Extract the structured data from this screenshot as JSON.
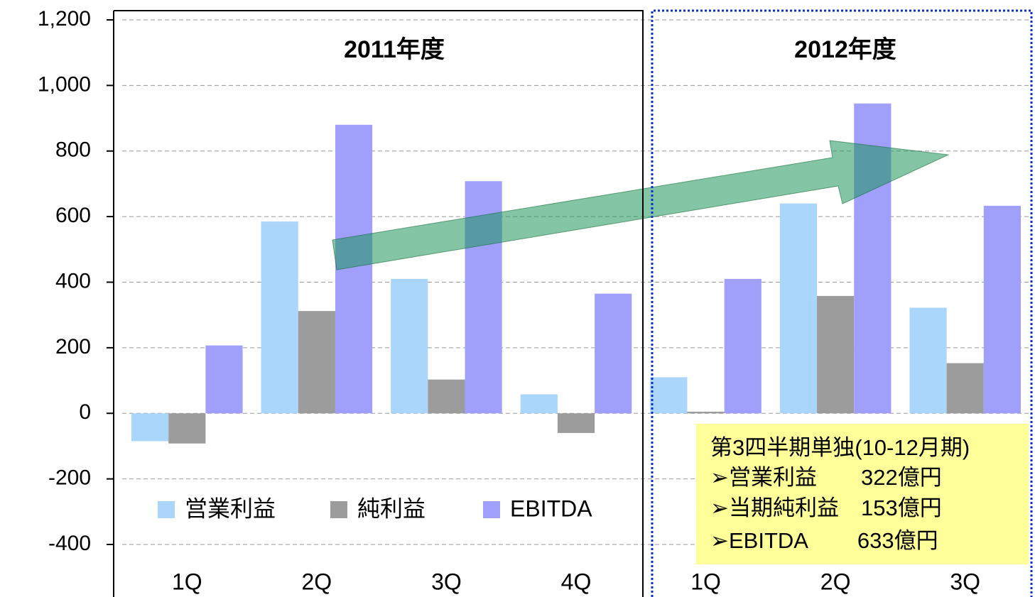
{
  "chart_data": {
    "type": "bar",
    "categories": [
      "1Q",
      "2Q",
      "3Q",
      "4Q",
      "1Q",
      "2Q",
      "3Q"
    ],
    "period_labels": [
      "2011年度",
      "2012年度"
    ],
    "series": [
      {
        "name": "営業利益",
        "color": "#a9d6fa",
        "values": [
          -85,
          585,
          410,
          58,
          110,
          640,
          322
        ]
      },
      {
        "name": "純利益",
        "color": "#9c9c9c",
        "values": [
          -92,
          312,
          103,
          -60,
          5,
          358,
          153
        ]
      },
      {
        "name": "EBITDA",
        "color": "#a0a0fc",
        "values": [
          207,
          880,
          708,
          365,
          410,
          945,
          633
        ]
      }
    ],
    "ylim": [
      -400,
      1200
    ],
    "yticks": [
      -400,
      -200,
      0,
      200,
      400,
      600,
      800,
      {
        "value": 1000,
        "label": "1,000"
      },
      {
        "value": 1200,
        "label": "1,200"
      }
    ],
    "grid": true,
    "annotation": [
      "第3四半期単独(10-12月期)",
      "➢営業利益　　322億円",
      "➢当期純利益　153億円",
      "➢EBITDA　　 633億円"
    ]
  }
}
